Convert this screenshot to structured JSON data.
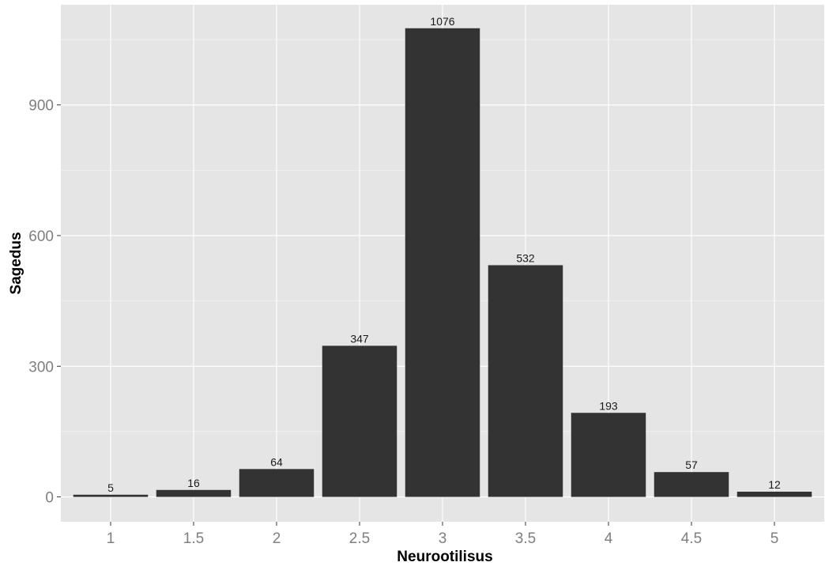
{
  "chart_data": {
    "type": "bar",
    "xlabel": "Neurootilisus",
    "ylabel": "Sagedus",
    "categories": [
      "1",
      "1.5",
      "2",
      "2.5",
      "3",
      "3.5",
      "4",
      "4.5",
      "5"
    ],
    "values": [
      5,
      16,
      64,
      347,
      1076,
      532,
      193,
      57,
      12
    ],
    "data_labels": [
      "5",
      "16",
      "64",
      "347",
      "1076",
      "532",
      "193",
      "57",
      "12"
    ],
    "yticks": [
      0,
      300,
      600,
      900
    ],
    "ytick_labels": [
      "0",
      "300",
      "600",
      "900"
    ],
    "ylim": [
      -57,
      1130
    ],
    "grid": true,
    "legend": "none",
    "colors": {
      "bar": "#333333",
      "panel_background": "#e5e5e5",
      "grid": "#ffffff",
      "tick_text": "#7f7f7f"
    }
  }
}
